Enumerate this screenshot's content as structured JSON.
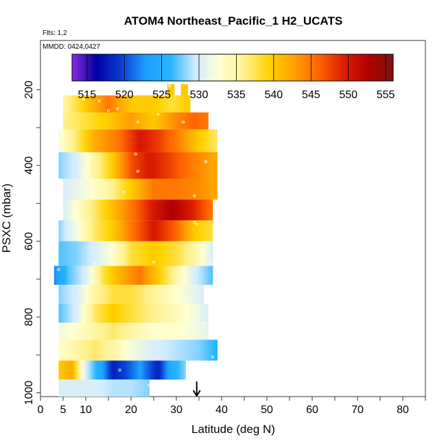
{
  "chart_data": {
    "type": "heatmap",
    "title": "ATOM4 Northeast_Pacific_1 H2_UCATS",
    "flights_label": "Flts: 1,2",
    "date_label": "MMDD: 0424,0427",
    "xlabel": "Latitude (deg N)",
    "ylabel": "PSXC (mbar)",
    "xlim": [
      0,
      85
    ],
    "ylim": [
      1010,
      70
    ],
    "x_ticks": [
      0,
      5,
      10,
      20,
      30,
      40,
      50,
      60,
      70,
      80
    ],
    "y_ticks": [
      200,
      400,
      600,
      800,
      1000
    ],
    "colorbar": {
      "ticks": [
        515,
        520,
        525,
        530,
        535,
        540,
        545,
        550,
        555
      ],
      "range": [
        513,
        556
      ],
      "palette": [
        "#8a2be2",
        "#0000a0",
        "#0a3fd4",
        "#1ea0ff",
        "#28b4ff",
        "#d2ecff",
        "#ffffd0",
        "#fff08c",
        "#ffd200",
        "#ffa000",
        "#ff6400",
        "#dc1e00",
        "#b40000",
        "#781410"
      ]
    },
    "arrow_latitude": 34.5,
    "grid": false,
    "legend": "colorbar at top",
    "rows": [
      {
        "p_top": 215,
        "p_bot": 260,
        "lat_min": 5,
        "lat_max": 33,
        "lats": [
          5,
          10,
          15,
          20,
          25,
          29,
          33
        ],
        "values": [
          535,
          540,
          545,
          540,
          540,
          538,
          540
        ]
      },
      {
        "p_top": 260,
        "p_bot": 305,
        "lat_min": 5,
        "lat_max": 37,
        "lats": [
          5,
          10,
          15,
          20,
          25,
          30,
          34,
          37
        ],
        "values": [
          536,
          538,
          540,
          543,
          540,
          544,
          546,
          545
        ]
      },
      {
        "p_top": 305,
        "p_bot": 365,
        "lat_min": 4,
        "lat_max": 39,
        "lats": [
          4,
          8,
          12,
          17,
          22,
          26,
          30,
          35,
          39
        ],
        "values": [
          532,
          537,
          542,
          545,
          550,
          548,
          545,
          540,
          537
        ]
      },
      {
        "p_top": 365,
        "p_bot": 435,
        "lat_min": 4,
        "lat_max": 39,
        "lats": [
          4,
          8,
          12,
          16,
          20,
          24,
          28,
          33,
          39
        ],
        "values": [
          528,
          530,
          535,
          540,
          547,
          550,
          548,
          545,
          542
        ]
      },
      {
        "p_top": 435,
        "p_bot": 490,
        "lat_min": 5,
        "lat_max": 39,
        "lats": [
          5,
          10,
          15,
          20,
          25,
          30,
          35,
          39
        ],
        "values": [
          530,
          532,
          535,
          540,
          545,
          545,
          544,
          542
        ]
      },
      {
        "p_top": 490,
        "p_bot": 545,
        "lat_min": 5,
        "lat_max": 38,
        "lats": [
          5,
          10,
          15,
          20,
          25,
          29,
          33,
          38
        ],
        "values": [
          530,
          535,
          540,
          545,
          550,
          553,
          550,
          545
        ]
      },
      {
        "p_top": 545,
        "p_bot": 600,
        "lat_min": 4,
        "lat_max": 38,
        "lats": [
          4,
          8,
          12,
          16,
          20,
          25,
          30,
          34,
          38
        ],
        "values": [
          528,
          532,
          537,
          540,
          545,
          550,
          546,
          540,
          538
        ]
      },
      {
        "p_top": 600,
        "p_bot": 665,
        "lat_min": 4,
        "lat_max": 38,
        "lats": [
          4,
          8,
          12,
          16,
          20,
          25,
          30,
          34,
          38
        ],
        "values": [
          527,
          528,
          530,
          533,
          538,
          540,
          538,
          535,
          530
        ]
      },
      {
        "p_top": 665,
        "p_bot": 715,
        "lat_min": 3,
        "lat_max": 38,
        "lats": [
          3,
          6,
          10,
          14,
          18,
          22,
          26,
          30,
          34,
          38
        ],
        "values": [
          522,
          527,
          530,
          538,
          542,
          545,
          540,
          535,
          530,
          527
        ]
      },
      {
        "p_top": 715,
        "p_bot": 765,
        "lat_min": 4,
        "lat_max": 36,
        "lats": [
          4,
          8,
          12,
          16,
          20,
          24,
          28,
          32,
          36
        ],
        "values": [
          528,
          530,
          535,
          538,
          538,
          536,
          534,
          532,
          530
        ]
      },
      {
        "p_top": 765,
        "p_bot": 815,
        "lat_min": 4,
        "lat_max": 37,
        "lats": [
          4,
          8,
          12,
          16,
          20,
          25,
          30,
          34,
          37
        ],
        "values": [
          527,
          530,
          537,
          540,
          538,
          536,
          534,
          532,
          530
        ]
      },
      {
        "p_top": 815,
        "p_bot": 860,
        "lat_min": 4,
        "lat_max": 37,
        "lats": [
          4,
          8,
          12,
          16,
          20,
          25,
          30,
          34,
          37
        ],
        "values": [
          532,
          533,
          535,
          537,
          535,
          533,
          533,
          532,
          531
        ]
      },
      {
        "p_top": 860,
        "p_bot": 915,
        "lat_min": 4,
        "lat_max": 39,
        "lats": [
          4,
          8,
          12,
          16,
          20,
          25,
          30,
          35,
          39
        ],
        "values": [
          533,
          535,
          537,
          535,
          532,
          530,
          529,
          528,
          526
        ]
      },
      {
        "p_top": 915,
        "p_bot": 965,
        "lat_min": 4,
        "lat_max": 32,
        "lats": [
          4,
          7,
          10,
          13,
          16,
          19,
          22,
          26,
          29,
          32
        ],
        "values": [
          540,
          542,
          530,
          525,
          518,
          520,
          523,
          518,
          525,
          528
        ]
      },
      {
        "p_top": 965,
        "p_bot": 1010,
        "lat_min": 4,
        "lat_max": 24,
        "lats": [
          4,
          8,
          12,
          16,
          20,
          24
        ],
        "values": [
          530,
          530,
          530,
          529,
          529,
          528
        ]
      },
      {
        "p_top": 185,
        "p_bot": 215,
        "lat_min": 28,
        "lat_max": 29.5,
        "lats": [
          28,
          29.5
        ],
        "values": [
          540,
          540
        ]
      },
      {
        "p_top": 185,
        "p_bot": 215,
        "lat_min": 31,
        "lat_max": 32.5,
        "lats": [
          31,
          32.5
        ],
        "values": [
          540,
          540
        ]
      }
    ],
    "markers": [
      {
        "lat": 9.5,
        "p": 225
      },
      {
        "lat": 13,
        "p": 230
      },
      {
        "lat": 15,
        "p": 255
      },
      {
        "lat": 17,
        "p": 250
      },
      {
        "lat": 21.5,
        "p": 285
      },
      {
        "lat": 26,
        "p": 265
      },
      {
        "lat": 31.5,
        "p": 285
      },
      {
        "lat": 28.5,
        "p": 190
      },
      {
        "lat": 21,
        "p": 370
      },
      {
        "lat": 9.5,
        "p": 420
      },
      {
        "lat": 21.5,
        "p": 415
      },
      {
        "lat": 36.5,
        "p": 390
      },
      {
        "lat": 18.5,
        "p": 470
      },
      {
        "lat": 34,
        "p": 480
      },
      {
        "lat": 34,
        "p": 550
      },
      {
        "lat": 34.5,
        "p": 555
      },
      {
        "lat": 12,
        "p": 660
      },
      {
        "lat": 16.5,
        "p": 660
      },
      {
        "lat": 25,
        "p": 655
      },
      {
        "lat": 37.5,
        "p": 660
      },
      {
        "lat": 36,
        "p": 815
      },
      {
        "lat": 38,
        "p": 905
      },
      {
        "lat": 17.5,
        "p": 940
      },
      {
        "lat": 24,
        "p": 980
      },
      {
        "lat": 4,
        "p": 675
      }
    ]
  }
}
